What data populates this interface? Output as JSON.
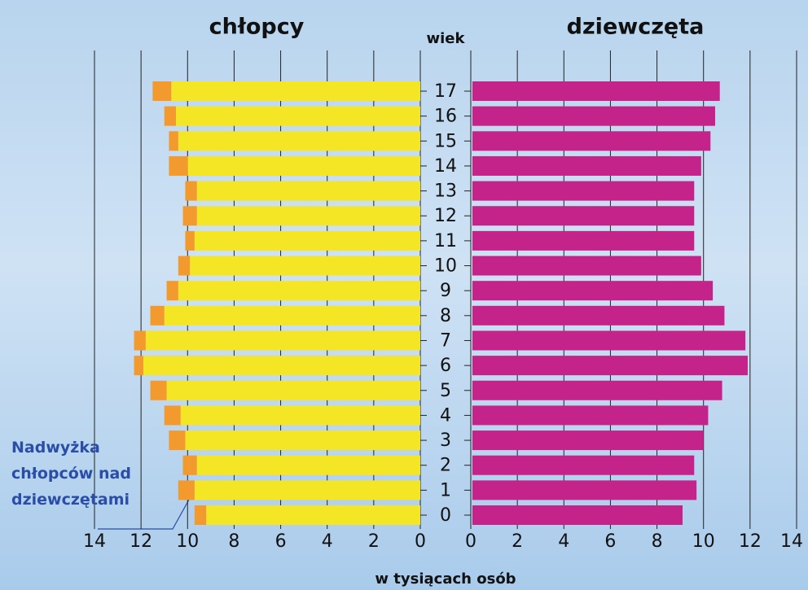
{
  "chart_data": {
    "type": "pyramid",
    "title_left": "chłopcy",
    "title_right": "dziewczęta",
    "y_label": "wiek",
    "x_label": "w tysiącach osób",
    "categories": [
      0,
      1,
      2,
      3,
      4,
      5,
      6,
      7,
      8,
      9,
      10,
      11,
      12,
      13,
      14,
      15,
      16,
      17
    ],
    "series": [
      {
        "name": "chłopcy",
        "side": "left",
        "color": "#f5e625",
        "values": [
          9.2,
          9.7,
          9.6,
          10.1,
          10.3,
          10.9,
          11.9,
          11.8,
          11.0,
          10.4,
          9.9,
          9.7,
          9.6,
          9.6,
          10.0,
          10.4,
          10.5,
          10.7
        ]
      },
      {
        "name": "Nadwyżka chłopców nad dziewczętami",
        "side": "left",
        "color": "#f29a2e",
        "values": [
          0.5,
          0.7,
          0.6,
          0.7,
          0.7,
          0.7,
          0.4,
          0.5,
          0.6,
          0.5,
          0.5,
          0.4,
          0.6,
          0.5,
          0.8,
          0.4,
          0.5,
          0.8
        ]
      },
      {
        "name": "dziewczęta",
        "side": "right",
        "color": "#c4248a",
        "values": [
          9.1,
          9.7,
          9.6,
          10.0,
          10.2,
          10.8,
          11.9,
          11.8,
          10.9,
          10.4,
          9.9,
          9.6,
          9.6,
          9.6,
          9.9,
          10.3,
          10.5,
          10.7
        ]
      }
    ],
    "xlim": [
      0,
      14
    ],
    "xticks": [
      0,
      2,
      4,
      6,
      8,
      10,
      12,
      14
    ],
    "grid": true
  }
}
